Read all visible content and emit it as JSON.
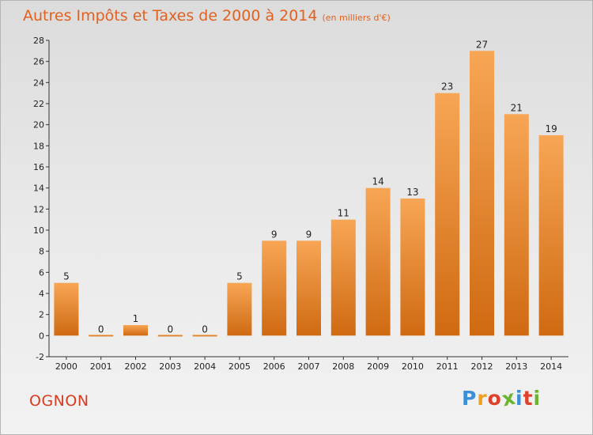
{
  "chart_data": {
    "type": "bar",
    "title": "Autres Impôts et Taxes de 2000 à 2014",
    "subtitle": "(en milliers d'€)",
    "categories": [
      "2000",
      "2001",
      "2002",
      "2003",
      "2004",
      "2005",
      "2006",
      "2007",
      "2008",
      "2009",
      "2010",
      "2011",
      "2012",
      "2013",
      "2014"
    ],
    "values": [
      5,
      0,
      1,
      0,
      0,
      5,
      9,
      9,
      11,
      14,
      13,
      23,
      27,
      21,
      19
    ],
    "ylim": [
      -2,
      28
    ],
    "yticks": [
      -2,
      0,
      2,
      4,
      6,
      8,
      10,
      12,
      14,
      16,
      18,
      20,
      22,
      24,
      26,
      28
    ],
    "grid": false,
    "bar_color": "#f08a2e",
    "xlabel": "",
    "ylabel": ""
  },
  "footer": {
    "commune": "OGNON",
    "logo_letters": [
      "P",
      "r",
      "o",
      "x",
      "i",
      "t",
      "i"
    ],
    "logo_colors": [
      "#3a8fd8",
      "#f0a020",
      "#e0402a",
      "#6bb52e",
      "#3a8fd8",
      "#e0402a",
      "#6bb52e"
    ]
  }
}
